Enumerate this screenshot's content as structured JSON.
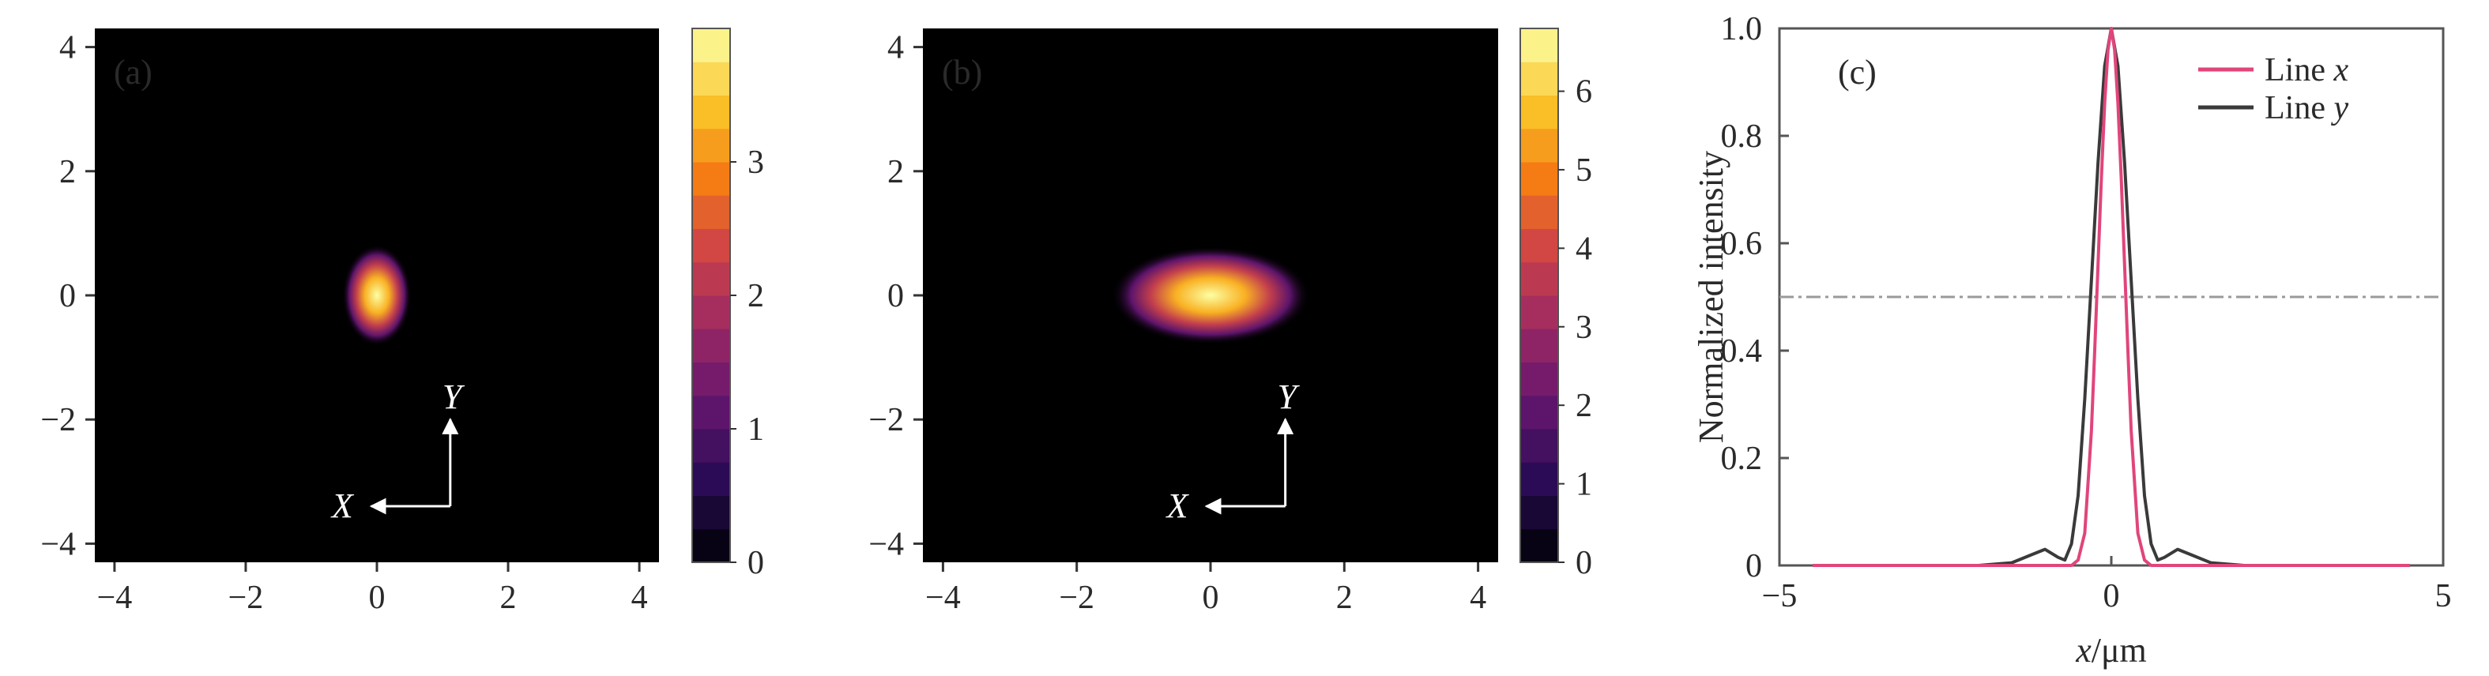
{
  "chart_data": [
    {
      "type": "heatmap",
      "panel_label": "(a)",
      "xlim": [
        -4.3,
        4.3
      ],
      "ylim": [
        -4.3,
        4.3
      ],
      "xticks": [
        -4,
        -2,
        0,
        2,
        4
      ],
      "yticks": [
        -4,
        -2,
        0,
        2,
        4
      ],
      "background": "#000000",
      "spot": {
        "center": [
          0,
          0
        ],
        "sigma_x": 0.22,
        "sigma_y": 0.34,
        "peak": 4.0
      },
      "colorbar": {
        "min": 0,
        "max": 4,
        "ticks": [
          0,
          1,
          2,
          3
        ],
        "levels": 16
      },
      "axes_glyph": {
        "x_label": "X",
        "y_label": "Y"
      }
    },
    {
      "type": "heatmap",
      "panel_label": "(b)",
      "xlim": [
        -4.3,
        4.3
      ],
      "ylim": [
        -4.3,
        4.3
      ],
      "xticks": [
        -4,
        -2,
        0,
        2,
        4
      ],
      "yticks": [
        -4,
        -2,
        0,
        2,
        4
      ],
      "background": "#000000",
      "spot": {
        "center": [
          0,
          0
        ],
        "sigma_x": 0.62,
        "sigma_y": 0.33,
        "peak": 6.8
      },
      "colorbar": {
        "min": 0,
        "max": 6.8,
        "ticks": [
          0,
          1,
          2,
          3,
          4,
          5,
          6
        ],
        "levels": 16
      },
      "axes_glyph": {
        "x_label": "X",
        "y_label": "Y"
      }
    },
    {
      "type": "line",
      "panel_label": "(c)",
      "xlabel_var": "x",
      "xlabel_unit": "/μm",
      "ylabel": "Normalized intensity",
      "xlim": [
        -5,
        5
      ],
      "ylim": [
        0,
        1.0
      ],
      "xticks": [
        -5,
        0,
        5
      ],
      "yticks": [
        0,
        0.2,
        0.4,
        0.6,
        0.8,
        1.0
      ],
      "ytick_labels": [
        "0",
        "0.2",
        "0.4",
        "0.6",
        "0.8",
        "1.0"
      ],
      "reference_line_y": 0.5,
      "legend_position": "top-right",
      "series": [
        {
          "name_prefix": "Line ",
          "name_var": "x",
          "color": "#e0457b",
          "x": [
            -4.5,
            -2.0,
            -1.0,
            -0.6,
            -0.5,
            -0.4,
            -0.3,
            -0.25,
            -0.2,
            -0.15,
            -0.1,
            -0.05,
            0,
            0.05,
            0.1,
            0.15,
            0.2,
            0.25,
            0.3,
            0.4,
            0.5,
            0.6,
            1.0,
            2.0,
            4.5
          ],
          "y": [
            0,
            0,
            0,
            0,
            0.01,
            0.06,
            0.25,
            0.4,
            0.56,
            0.72,
            0.86,
            0.96,
            1.0,
            0.96,
            0.86,
            0.72,
            0.56,
            0.4,
            0.25,
            0.06,
            0.01,
            0,
            0,
            0,
            0
          ]
        },
        {
          "name_prefix": "Line ",
          "name_var": "y",
          "color": "#3a3a3a",
          "x": [
            -4.5,
            -2.0,
            -1.5,
            -1.2,
            -1.0,
            -0.8,
            -0.7,
            -0.6,
            -0.5,
            -0.4,
            -0.3,
            -0.2,
            -0.1,
            0,
            0.1,
            0.2,
            0.3,
            0.4,
            0.5,
            0.6,
            0.7,
            0.8,
            1.0,
            1.2,
            1.5,
            2.0,
            4.5
          ],
          "y": [
            0,
            0,
            0.005,
            0.02,
            0.03,
            0.015,
            0.01,
            0.04,
            0.13,
            0.31,
            0.53,
            0.75,
            0.93,
            1.0,
            0.93,
            0.75,
            0.53,
            0.31,
            0.13,
            0.04,
            0.01,
            0.015,
            0.03,
            0.02,
            0.005,
            0,
            0
          ]
        }
      ]
    }
  ]
}
